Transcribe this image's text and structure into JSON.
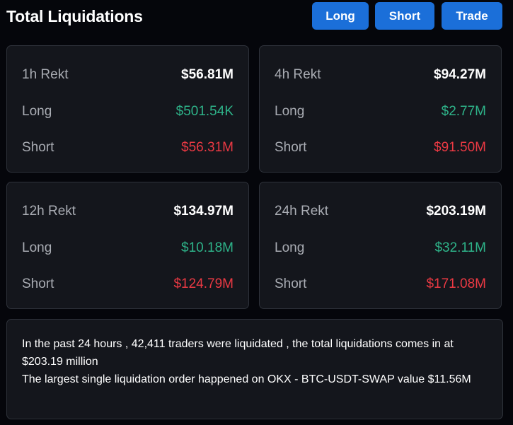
{
  "header": {
    "title": "Total Liquidations",
    "buttons": {
      "long": "Long",
      "short": "Short",
      "trade": "Trade"
    }
  },
  "cards": [
    {
      "period_label": "1h Rekt",
      "total": "$56.81M",
      "long_label": "Long",
      "long": "$501.54K",
      "short_label": "Short",
      "short": "$56.31M"
    },
    {
      "period_label": "4h Rekt",
      "total": "$94.27M",
      "long_label": "Long",
      "long": "$2.77M",
      "short_label": "Short",
      "short": "$91.50M"
    },
    {
      "period_label": "12h Rekt",
      "total": "$134.97M",
      "long_label": "Long",
      "long": "$10.18M",
      "short_label": "Short",
      "short": "$124.79M"
    },
    {
      "period_label": "24h Rekt",
      "total": "$203.19M",
      "long_label": "Long",
      "long": "$32.11M",
      "short_label": "Short",
      "short": "$171.08M"
    }
  ],
  "summary": {
    "line1": "In the past 24 hours , 42,411 traders were liquidated , the total liquidations comes in at $203.19 million",
    "line2": "The largest single liquidation order happened on OKX - BTC-USDT-SWAP value $11.56M"
  },
  "colors": {
    "accent": "#1b6fd9",
    "long": "#2eb389",
    "short": "#ea3943",
    "card_bg": "#14161c",
    "page_bg": "#05060b"
  }
}
